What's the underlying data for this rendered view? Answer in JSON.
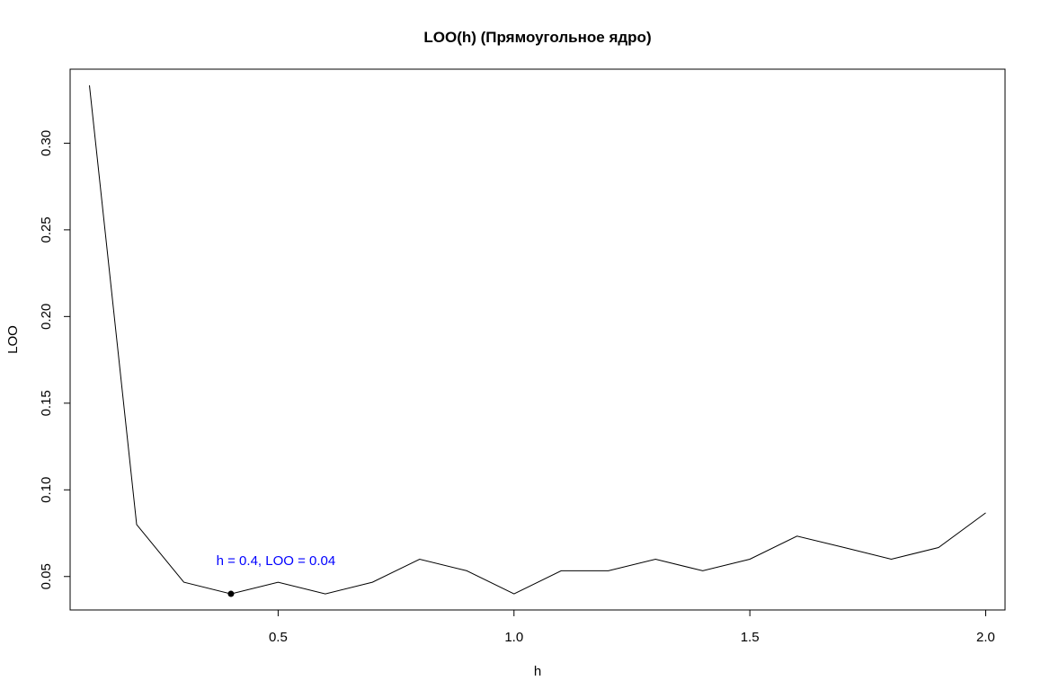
{
  "chart_data": {
    "type": "line",
    "title": "LOO(h) (Прямоугольное ядро)",
    "xlabel": "h",
    "ylabel": "LOO",
    "xlim": [
      0.059,
      2.041
    ],
    "ylim": [
      0.0307,
      0.3427
    ],
    "x_ticks": [
      0.5,
      1.0,
      1.5,
      2.0
    ],
    "x_tick_labels": [
      "0.5",
      "1.0",
      "1.5",
      "2.0"
    ],
    "y_ticks": [
      0.05,
      0.1,
      0.15,
      0.2,
      0.25,
      0.3
    ],
    "y_tick_labels": [
      "0.05",
      "0.10",
      "0.15",
      "0.20",
      "0.25",
      "0.30"
    ],
    "grid": false,
    "series": [
      {
        "x": [
          0.1,
          0.2,
          0.3,
          0.4,
          0.5,
          0.6,
          0.7,
          0.8,
          0.9,
          1.0,
          1.1,
          1.2,
          1.3,
          1.4,
          1.5,
          1.6,
          1.7,
          1.8,
          1.9,
          2.0
        ],
        "values": [
          0.3333,
          0.08,
          0.0467,
          0.04,
          0.0467,
          0.04,
          0.0467,
          0.06,
          0.0533,
          0.04,
          0.0533,
          0.0533,
          0.06,
          0.0533,
          0.06,
          0.0733,
          0.0667,
          0.06,
          0.0667,
          0.0867
        ],
        "color": "#000000"
      }
    ],
    "highlight_point": {
      "x": 0.4,
      "y": 0.04,
      "color": "#000000"
    },
    "annotation": {
      "text": "h = 0.4, LOO = 0.04",
      "x": 0.4,
      "y": 0.04,
      "color": "#0000ff"
    }
  }
}
